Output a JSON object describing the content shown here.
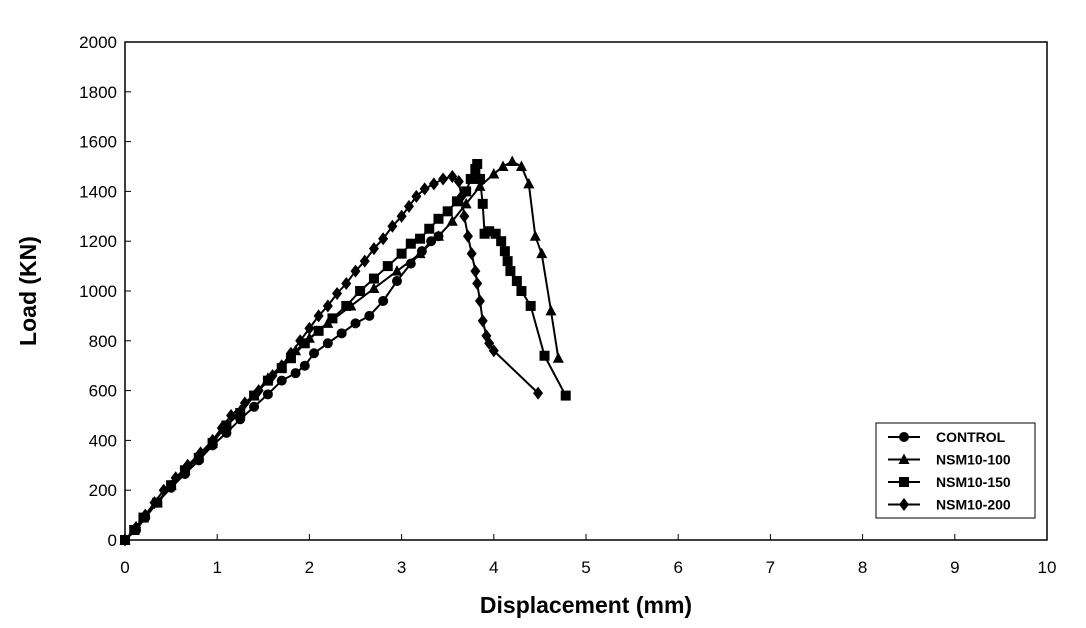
{
  "chart_data": {
    "type": "line",
    "title": "",
    "xlabel": "Displacement (mm)",
    "ylabel": "Load (KN)",
    "xlim": [
      0,
      10
    ],
    "ylim": [
      0,
      2000
    ],
    "x_ticks": [
      "0",
      "1",
      "2",
      "3",
      "4",
      "5",
      "6",
      "7",
      "8",
      "9",
      "10"
    ],
    "y_ticks": [
      "0",
      "200",
      "400",
      "600",
      "800",
      "1000",
      "1200",
      "1400",
      "1600",
      "1800",
      "2000"
    ],
    "grid": false,
    "legend_position": "bottom-right",
    "series": [
      {
        "name": "CONTROL",
        "marker": "circle",
        "points": [
          [
            0,
            0
          ],
          [
            0.12,
            40
          ],
          [
            0.22,
            90
          ],
          [
            0.35,
            150
          ],
          [
            0.5,
            210
          ],
          [
            0.65,
            265
          ],
          [
            0.8,
            320
          ],
          [
            0.95,
            380
          ],
          [
            1.1,
            430
          ],
          [
            1.25,
            485
          ],
          [
            1.4,
            535
          ],
          [
            1.55,
            585
          ],
          [
            1.7,
            640
          ],
          [
            1.85,
            670
          ],
          [
            1.95,
            700
          ],
          [
            2.05,
            750
          ],
          [
            2.2,
            790
          ],
          [
            2.35,
            830
          ],
          [
            2.5,
            870
          ],
          [
            2.65,
            900
          ],
          [
            2.8,
            960
          ],
          [
            2.95,
            1040
          ],
          [
            3.1,
            1110
          ],
          [
            3.22,
            1160
          ],
          [
            3.32,
            1200
          ],
          [
            3.4,
            1220
          ]
        ]
      },
      {
        "name": "NSM10-100",
        "marker": "triangle",
        "points": [
          [
            0,
            0
          ],
          [
            0.1,
            40
          ],
          [
            0.2,
            90
          ],
          [
            0.35,
            150
          ],
          [
            0.5,
            220
          ],
          [
            0.65,
            280
          ],
          [
            0.8,
            340
          ],
          [
            0.95,
            400
          ],
          [
            1.1,
            460
          ],
          [
            1.25,
            520
          ],
          [
            1.4,
            580
          ],
          [
            1.55,
            650
          ],
          [
            1.7,
            700
          ],
          [
            1.85,
            760
          ],
          [
            2.0,
            810
          ],
          [
            2.2,
            870
          ],
          [
            2.45,
            940
          ],
          [
            2.7,
            1010
          ],
          [
            2.95,
            1080
          ],
          [
            3.2,
            1150
          ],
          [
            3.4,
            1220
          ],
          [
            3.55,
            1280
          ],
          [
            3.7,
            1350
          ],
          [
            3.85,
            1420
          ],
          [
            4.0,
            1470
          ],
          [
            4.1,
            1500
          ],
          [
            4.2,
            1520
          ],
          [
            4.3,
            1500
          ],
          [
            4.38,
            1430
          ],
          [
            4.45,
            1220
          ],
          [
            4.52,
            1150
          ],
          [
            4.62,
            920
          ],
          [
            4.7,
            730
          ]
        ]
      },
      {
        "name": "NSM10-150",
        "marker": "square",
        "points": [
          [
            0,
            0
          ],
          [
            0.1,
            40
          ],
          [
            0.2,
            90
          ],
          [
            0.35,
            150
          ],
          [
            0.5,
            220
          ],
          [
            0.65,
            280
          ],
          [
            0.8,
            330
          ],
          [
            0.95,
            390
          ],
          [
            1.1,
            460
          ],
          [
            1.25,
            510
          ],
          [
            1.4,
            580
          ],
          [
            1.55,
            640
          ],
          [
            1.7,
            690
          ],
          [
            1.8,
            730
          ],
          [
            1.95,
            790
          ],
          [
            2.1,
            840
          ],
          [
            2.25,
            890
          ],
          [
            2.4,
            940
          ],
          [
            2.55,
            1000
          ],
          [
            2.7,
            1050
          ],
          [
            2.85,
            1100
          ],
          [
            3.0,
            1150
          ],
          [
            3.1,
            1190
          ],
          [
            3.2,
            1210
          ],
          [
            3.3,
            1250
          ],
          [
            3.4,
            1290
          ],
          [
            3.5,
            1320
          ],
          [
            3.6,
            1360
          ],
          [
            3.7,
            1400
          ],
          [
            3.75,
            1450
          ],
          [
            3.8,
            1490
          ],
          [
            3.82,
            1510
          ],
          [
            3.85,
            1450
          ],
          [
            3.88,
            1350
          ],
          [
            3.9,
            1230
          ],
          [
            3.95,
            1240
          ],
          [
            4.02,
            1230
          ],
          [
            4.08,
            1200
          ],
          [
            4.12,
            1160
          ],
          [
            4.15,
            1120
          ],
          [
            4.18,
            1080
          ],
          [
            4.25,
            1040
          ],
          [
            4.3,
            1000
          ],
          [
            4.4,
            940
          ],
          [
            4.55,
            740
          ],
          [
            4.78,
            580
          ]
        ]
      },
      {
        "name": "NSM10-200",
        "marker": "diamond",
        "points": [
          [
            0,
            0
          ],
          [
            0.12,
            50
          ],
          [
            0.22,
            100
          ],
          [
            0.32,
            150
          ],
          [
            0.42,
            200
          ],
          [
            0.55,
            250
          ],
          [
            0.68,
            300
          ],
          [
            0.82,
            350
          ],
          [
            0.95,
            400
          ],
          [
            1.05,
            450
          ],
          [
            1.15,
            500
          ],
          [
            1.3,
            550
          ],
          [
            1.45,
            600
          ],
          [
            1.6,
            660
          ],
          [
            1.7,
            700
          ],
          [
            1.8,
            750
          ],
          [
            1.9,
            800
          ],
          [
            2.0,
            850
          ],
          [
            2.1,
            900
          ],
          [
            2.2,
            940
          ],
          [
            2.3,
            990
          ],
          [
            2.4,
            1030
          ],
          [
            2.5,
            1080
          ],
          [
            2.6,
            1120
          ],
          [
            2.7,
            1170
          ],
          [
            2.8,
            1210
          ],
          [
            2.9,
            1260
          ],
          [
            3.0,
            1300
          ],
          [
            3.08,
            1340
          ],
          [
            3.16,
            1380
          ],
          [
            3.25,
            1410
          ],
          [
            3.35,
            1430
          ],
          [
            3.45,
            1450
          ],
          [
            3.55,
            1460
          ],
          [
            3.62,
            1440
          ],
          [
            3.65,
            1380
          ],
          [
            3.68,
            1300
          ],
          [
            3.72,
            1220
          ],
          [
            3.76,
            1150
          ],
          [
            3.8,
            1080
          ],
          [
            3.82,
            1030
          ],
          [
            3.85,
            960
          ],
          [
            3.88,
            880
          ],
          [
            3.92,
            820
          ],
          [
            3.95,
            790
          ],
          [
            4.0,
            760
          ],
          [
            4.48,
            590
          ]
        ]
      }
    ]
  }
}
